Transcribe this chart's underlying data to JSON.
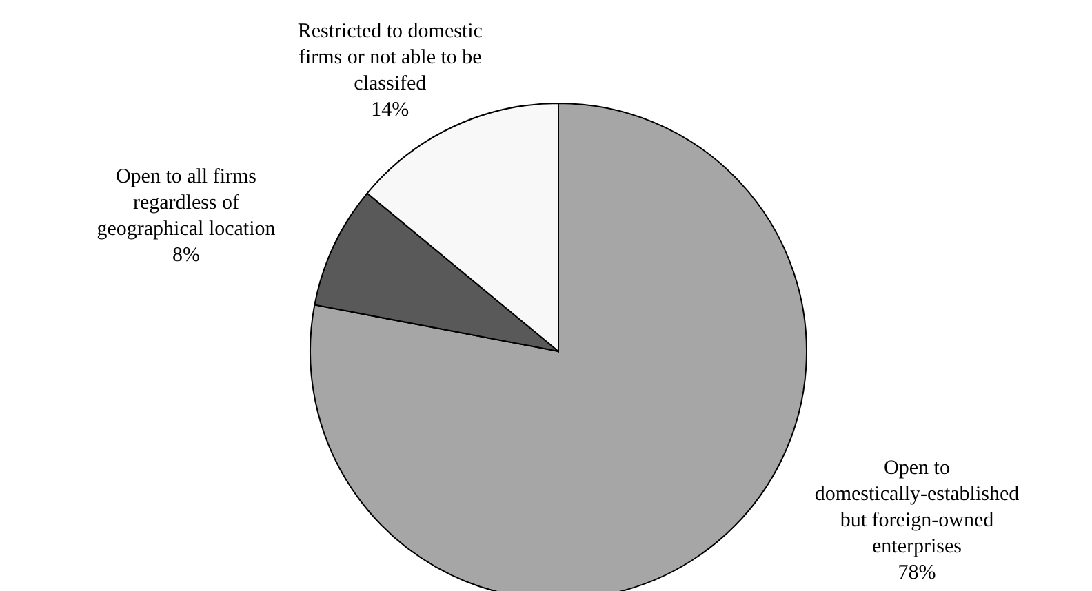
{
  "chart_data": {
    "type": "pie",
    "categories": [
      "Open to domestically-established but foreign-owned enterprises",
      "Open to all firms regardless of geographical location",
      "Restricted to domestic firms or not able to be classifed"
    ],
    "values": [
      78,
      8,
      14
    ],
    "colors": [
      "#a6a6a6",
      "#595959",
      "#f8f8f8"
    ],
    "value_labels": [
      "78%",
      "8%",
      "14%"
    ],
    "legend": false
  }
}
